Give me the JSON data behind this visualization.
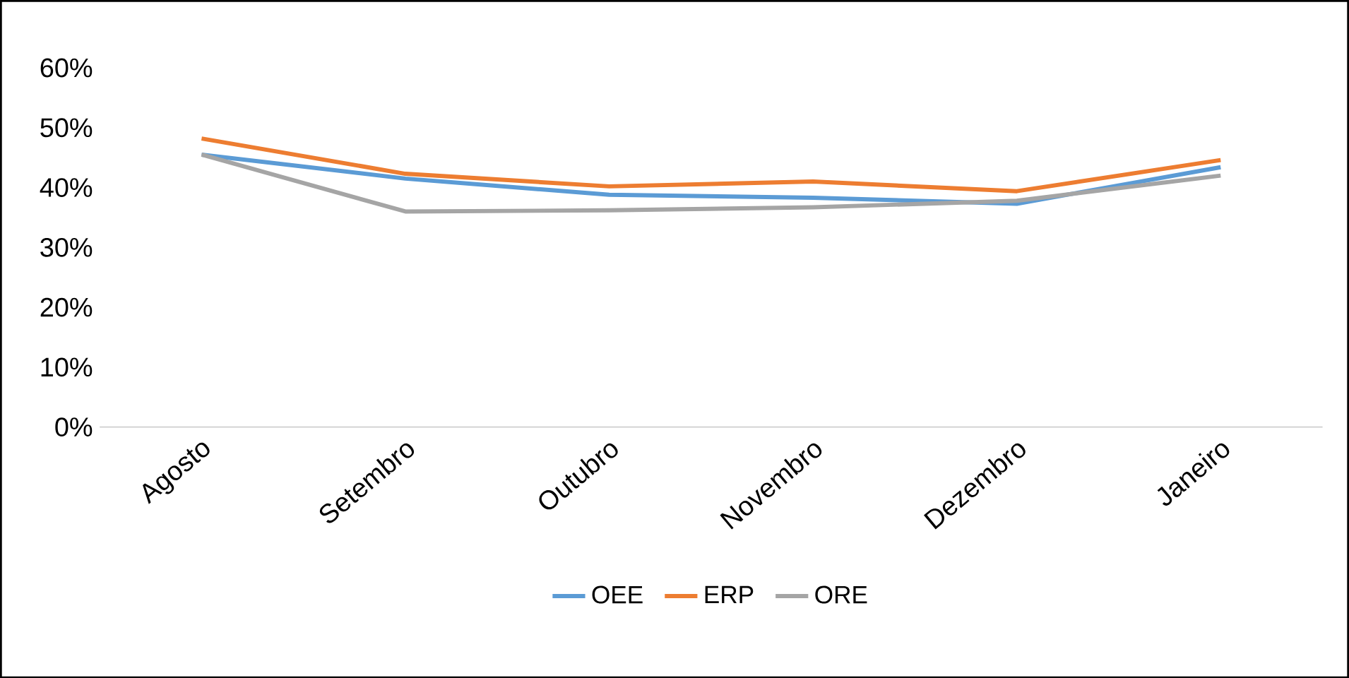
{
  "chart_data": {
    "type": "line",
    "categories": [
      "Agosto",
      "Setembro",
      "Outubro",
      "Novembro",
      "Dezembro",
      "Janeiro"
    ],
    "series": [
      {
        "name": "OEE",
        "color": "#5b9bd5",
        "values": [
          45.5,
          41.5,
          38.8,
          38.3,
          37.3,
          43.4
        ]
      },
      {
        "name": "ERP",
        "color": "#ed7d31",
        "values": [
          48.2,
          42.3,
          40.2,
          41.0,
          39.4,
          44.6
        ]
      },
      {
        "name": "ORE",
        "color": "#a5a5a5",
        "values": [
          45.5,
          36.0,
          36.2,
          36.7,
          37.8,
          42.0
        ]
      }
    ],
    "ylim": [
      0,
      60
    ],
    "yticks": [
      {
        "value": 0,
        "label": "0%"
      },
      {
        "value": 10,
        "label": "10%"
      },
      {
        "value": 20,
        "label": "20%"
      },
      {
        "value": 30,
        "label": "30%"
      },
      {
        "value": 40,
        "label": "40%"
      },
      {
        "value": 50,
        "label": "50%"
      },
      {
        "value": 60,
        "label": "60%"
      }
    ],
    "grid": false,
    "legend": "bottom",
    "marker": "none",
    "line_style": "solid"
  }
}
